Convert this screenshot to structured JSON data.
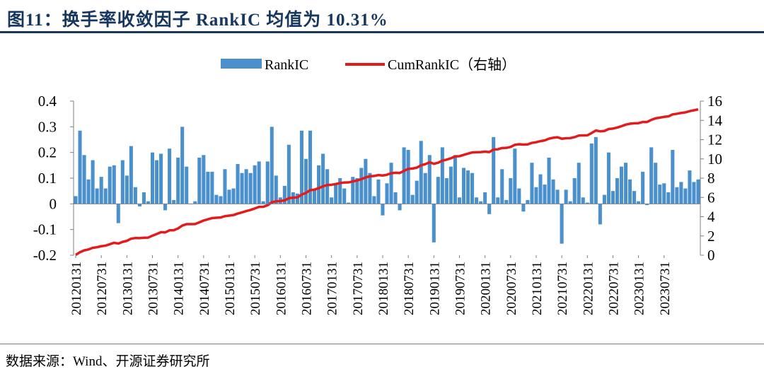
{
  "title": "图11：换手率收敛因子 RankIC 均值为 10.31%",
  "source": "数据来源：Wind、开源证券研究所",
  "colors": {
    "bar": "#4a90cc",
    "line": "#e41a1c",
    "title": "#17375e"
  },
  "chart_data": {
    "type": "bar+line",
    "legend": [
      "RankIC",
      "CumRankIC（右轴）"
    ],
    "left_axis": {
      "min": -0.2,
      "max": 0.4,
      "ticks": [
        -0.2,
        -0.1,
        0,
        0.1,
        0.2,
        0.3,
        0.4
      ],
      "tick_labels": [
        "-0.2",
        "-0.1",
        "0",
        "0.1",
        "0.2",
        "0.3",
        "0.4"
      ]
    },
    "right_axis": {
      "min": 0,
      "max": 16,
      "ticks": [
        0,
        2,
        4,
        6,
        8,
        10,
        12,
        14,
        16
      ],
      "tick_labels": [
        "0",
        "2",
        "4",
        "6",
        "8",
        "10",
        "12",
        "14",
        "16"
      ]
    },
    "x_tick_labels": [
      "20120131",
      "20120731",
      "20130131",
      "20130731",
      "20140131",
      "20140731",
      "20150131",
      "20150731",
      "20160131",
      "20160731",
      "20170131",
      "20170731",
      "20180131",
      "20180731",
      "20190131",
      "20190731",
      "20200131",
      "20200731",
      "20210131",
      "20210731",
      "20220131",
      "20220731",
      "20230131",
      "20230731"
    ],
    "x_tick_step": 6,
    "series": [
      {
        "name": "RankIC",
        "type": "bar",
        "axis": "left",
        "values": [
          0.03,
          0.285,
          0.19,
          0.095,
          0.17,
          0.06,
          0.105,
          0.06,
          0.145,
          0.15,
          -0.075,
          0.17,
          0.11,
          0.225,
          0.065,
          -0.01,
          0.045,
          0.01,
          0.2,
          0.17,
          0.195,
          -0.025,
          0.215,
          0.015,
          0.18,
          0.3,
          0.145,
          0.0,
          0.01,
          0.18,
          0.19,
          0.125,
          0.125,
          0.035,
          0.03,
          0.135,
          0.055,
          0.06,
          0.155,
          0.12,
          0.135,
          0.12,
          0.15,
          0.165,
          0.01,
          0.165,
          0.3,
          0.11,
          0.025,
          0.07,
          0.23,
          0.045,
          0.04,
          0.285,
          0.175,
          0.285,
          0.055,
          0.15,
          0.195,
          0.135,
          0.025,
          0.075,
          0.1,
          0.06,
          0.005,
          0.105,
          0.1,
          0.14,
          0.175,
          0.12,
          0.03,
          0.095,
          -0.045,
          0.08,
          0.16,
          0.045,
          -0.025,
          0.22,
          0.21,
          0.035,
          0.09,
          0.245,
          0.12,
          0.19,
          -0.15,
          0.105,
          0.22,
          0.1,
          0.145,
          0.19,
          0.025,
          0.14,
          0.13,
          0.12,
          0.025,
          0.01,
          0.045,
          -0.04,
          0.26,
          0.025,
          0.135,
          0.015,
          0.1,
          0.215,
          0.06,
          -0.03,
          0.015,
          0.16,
          0.065,
          0.115,
          0.075,
          0.18,
          0.095,
          0.055,
          -0.155,
          0.055,
          0.01,
          0.1,
          0.16,
          0.025,
          0.005,
          0.235,
          0.26,
          -0.08,
          0.035,
          0.2,
          0.05,
          0.1,
          0.145,
          0.16,
          0.095,
          0.05,
          0.01,
          0.125,
          -0.005,
          0.22,
          0.16,
          0.075,
          0.08,
          0.045,
          0.21,
          0.065,
          0.085,
          0.06,
          0.13,
          0.085,
          0.095
        ]
      },
      {
        "name": "CumRankIC（右轴）",
        "type": "line",
        "axis": "right",
        "values": [
          0.03,
          0.315,
          0.505,
          0.6,
          0.77,
          0.83,
          0.935,
          0.995,
          1.14,
          1.29,
          1.215,
          1.385,
          1.495,
          1.72,
          1.785,
          1.775,
          1.82,
          1.83,
          2.03,
          2.2,
          2.395,
          2.37,
          2.585,
          2.6,
          2.78,
          3.08,
          3.225,
          3.225,
          3.235,
          3.415,
          3.605,
          3.73,
          3.855,
          3.89,
          3.92,
          4.055,
          4.11,
          4.17,
          4.325,
          4.445,
          4.58,
          4.7,
          4.85,
          5.015,
          5.025,
          5.19,
          5.49,
          5.6,
          5.625,
          5.695,
          5.925,
          5.97,
          6.01,
          6.295,
          6.47,
          6.755,
          6.81,
          6.96,
          7.155,
          7.29,
          7.315,
          7.39,
          7.49,
          7.55,
          7.555,
          7.66,
          7.76,
          7.9,
          8.075,
          8.195,
          8.225,
          8.32,
          8.275,
          8.355,
          8.515,
          8.56,
          8.535,
          8.755,
          8.965,
          9.0,
          9.09,
          9.335,
          9.455,
          9.645,
          9.495,
          9.6,
          9.82,
          9.92,
          10.065,
          10.255,
          10.28,
          10.42,
          10.55,
          10.67,
          10.695,
          10.705,
          10.75,
          10.71,
          10.97,
          10.995,
          11.13,
          11.145,
          11.245,
          11.46,
          11.52,
          11.49,
          11.505,
          11.665,
          11.73,
          11.845,
          11.92,
          12.1,
          12.195,
          12.25,
          12.095,
          12.15,
          12.16,
          12.26,
          12.42,
          12.445,
          12.45,
          12.685,
          12.945,
          12.865,
          12.9,
          13.1,
          13.15,
          13.25,
          13.395,
          13.555,
          13.65,
          13.7,
          13.71,
          13.835,
          13.83,
          14.05,
          14.21,
          14.285,
          14.365,
          14.41,
          14.62,
          14.685,
          14.77,
          14.83,
          14.96,
          15.045,
          15.14
        ]
      }
    ]
  }
}
